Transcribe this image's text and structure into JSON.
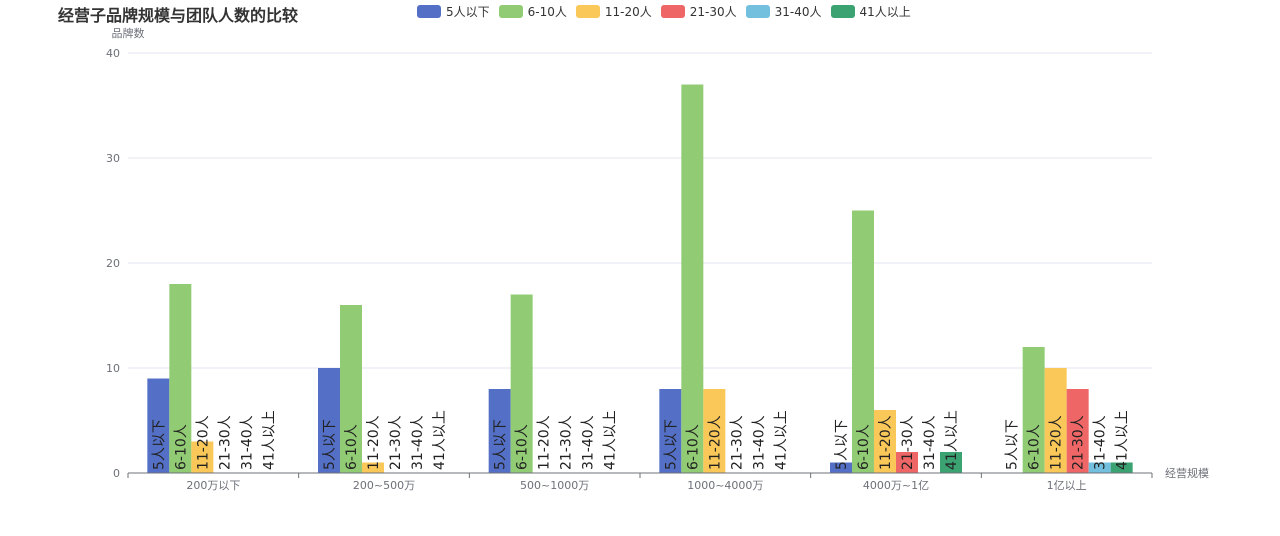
{
  "chart_data": {
    "type": "bar",
    "title": "经营子品牌规模与团队人数的比较",
    "ylabel": "品牌数",
    "xlabel": "经营规模",
    "ylim": [
      0,
      40
    ],
    "yticks": [
      "0",
      "10",
      "20",
      "30",
      "40"
    ],
    "categories": [
      "200万以下",
      "200~500万",
      "500~1000万",
      "1000~4000万",
      "4000万~1亿",
      "1亿以上"
    ],
    "series": [
      {
        "name": "5人以下",
        "color": "#5470c6",
        "values": [
          9,
          10,
          8,
          8,
          1,
          0
        ]
      },
      {
        "name": "6-10人",
        "color": "#91cc75",
        "values": [
          18,
          16,
          17,
          37,
          25,
          12
        ]
      },
      {
        "name": "11-20人",
        "color": "#fac858",
        "values": [
          3,
          1,
          0,
          8,
          6,
          10
        ]
      },
      {
        "name": "21-30人",
        "color": "#ee6666",
        "values": [
          0,
          0,
          0,
          0,
          2,
          8
        ]
      },
      {
        "name": "31-40人",
        "color": "#73c0de",
        "values": [
          0,
          0,
          0,
          0,
          0,
          1
        ]
      },
      {
        "name": "41人以上",
        "color": "#3ba272",
        "values": [
          0,
          0,
          0,
          0,
          2,
          1
        ]
      }
    ],
    "bar_label_text": [
      "5人以下",
      "6-10人",
      "11-20人",
      "21-30人",
      "31-40人",
      "41人以上"
    ],
    "grid": true,
    "legend_position": "top"
  }
}
